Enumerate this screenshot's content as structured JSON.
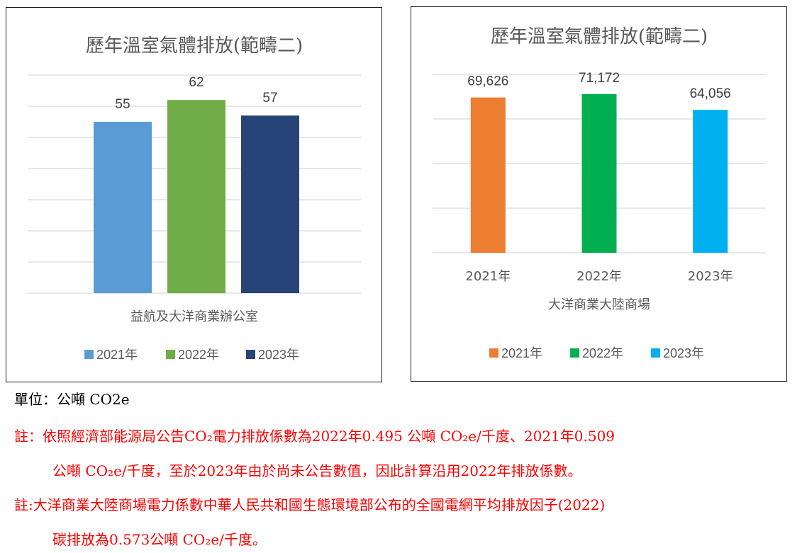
{
  "chart_data": [
    {
      "type": "bar",
      "title": "歷年溫室氣體排放(範疇二)",
      "xlabel": "益航及大洋商業辦公室",
      "ylabel": "",
      "ylim": [
        0,
        70
      ],
      "grid": true,
      "legend_position": "bottom",
      "categories": [
        ""
      ],
      "series": [
        {
          "name": "2021年",
          "values": [
            55
          ],
          "color": "#5b9bd5"
        },
        {
          "name": "2022年",
          "values": [
            62
          ],
          "color": "#70ad47"
        },
        {
          "name": "2023年",
          "values": [
            57
          ],
          "color": "#264478"
        }
      ],
      "data_labels": [
        "55",
        "62",
        "57"
      ]
    },
    {
      "type": "bar",
      "title": "歷年溫室氣體排放(範疇二)",
      "xlabel": "大洋商業大陸商場",
      "ylabel": "",
      "ylim": [
        0,
        80000
      ],
      "grid": true,
      "legend_position": "bottom",
      "categories": [
        "2021年",
        "2022年",
        "2023年"
      ],
      "values": [
        69626,
        71172,
        64056
      ],
      "colors": [
        "#ed7d31",
        "#00b050",
        "#00b0f0"
      ],
      "data_labels": [
        "69,626",
        "71,172",
        "64,056"
      ],
      "legend": [
        {
          "name": "2021年",
          "color": "#ed7d31"
        },
        {
          "name": "2022年",
          "color": "#00b050"
        },
        {
          "name": "2023年",
          "color": "#00b0f0"
        }
      ]
    }
  ],
  "notes": {
    "unit": "單位：公噸 CO2e",
    "note1_line1": "註：依照經濟部能源局公告CO₂電力排放係數為2022年0.495 公噸 CO₂e/千度、2021年0.509",
    "note1_line2": "公噸 CO₂e/千度，至於2023年由於尚未公告數值，因此計算沿用2022年排放係數。",
    "note2_line1": "註:大洋商業大陸商場電力係數中華人民共和國生態環境部公布的全國電網平均排放因子(2022)",
    "note2_line2": "碳排放為0.573公噸 CO₂e/千度。"
  }
}
